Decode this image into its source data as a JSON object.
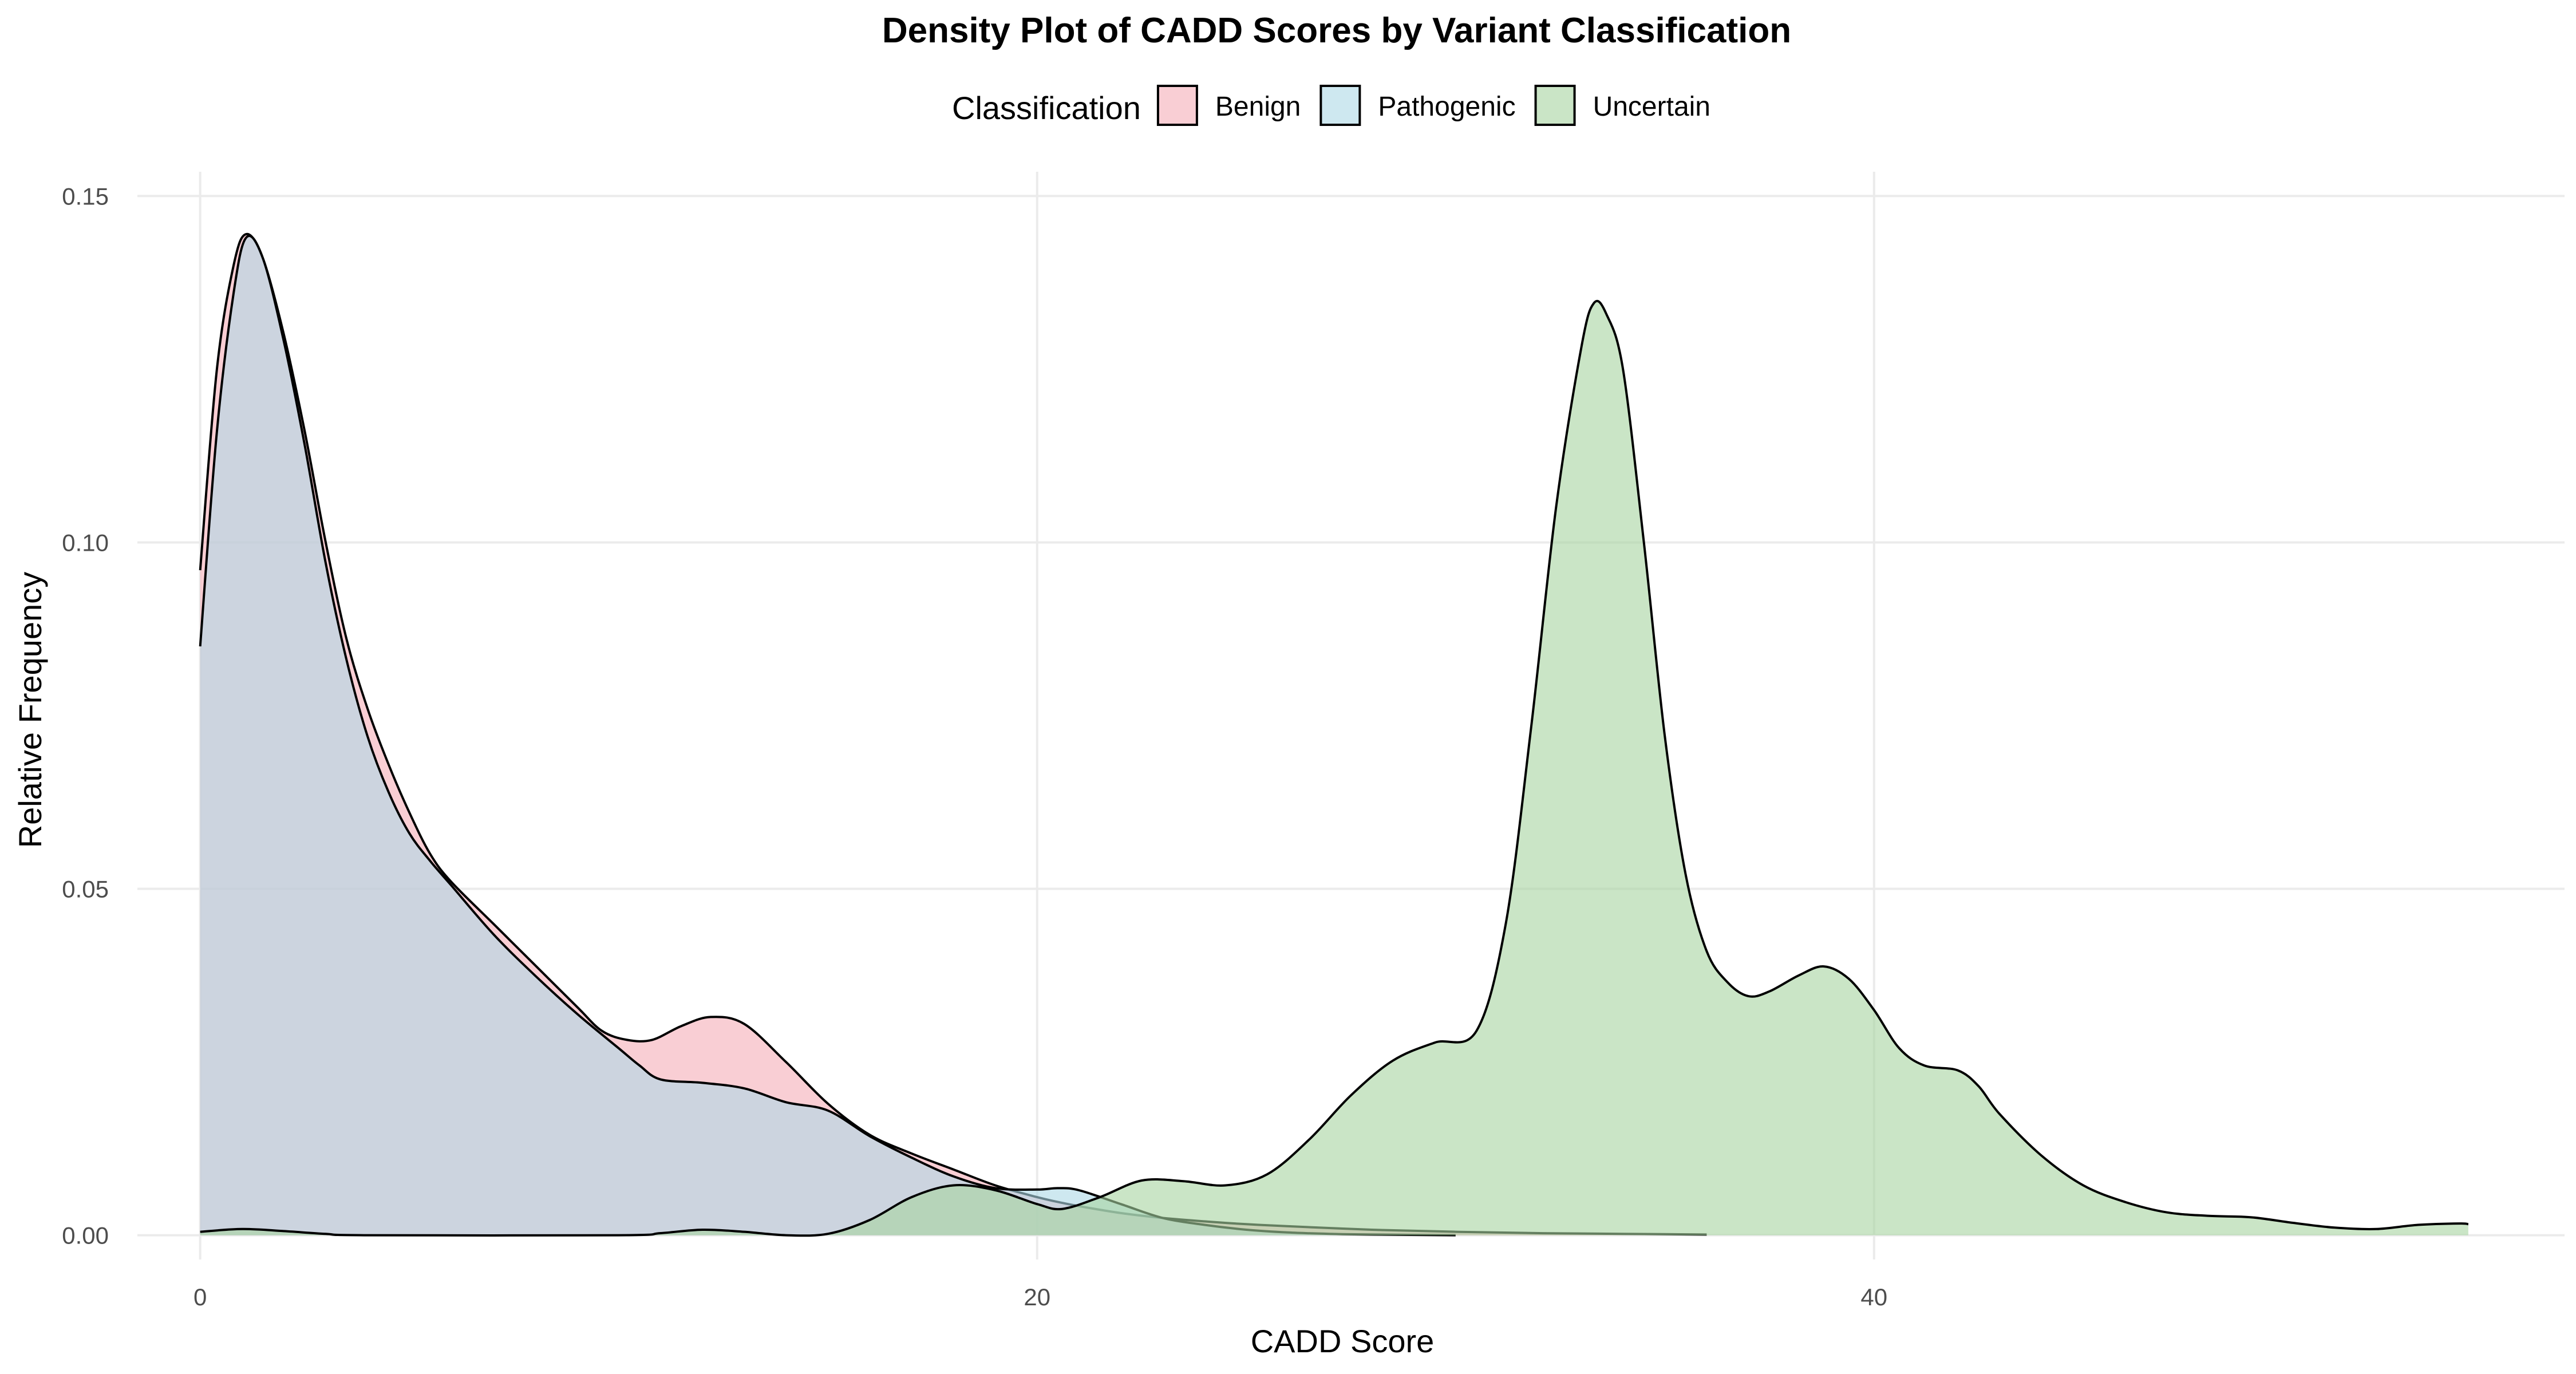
{
  "chart_data": {
    "type": "area",
    "title": "Density Plot of CADD Scores by Variant Classification",
    "xlabel": "CADD Score",
    "ylabel": "Relative Frequency",
    "xlim": [
      -1.5,
      56.5
    ],
    "ylim": [
      -0.0035,
      0.1535
    ],
    "x_ticks": [
      0,
      20,
      40
    ],
    "x_tick_labels": [
      "0",
      "20",
      "40"
    ],
    "y_ticks": [
      0.0,
      0.05,
      0.1,
      0.15
    ],
    "y_tick_labels": [
      "0.00",
      "0.05",
      "0.10",
      "0.15"
    ],
    "grid": true,
    "legend": {
      "title": "Classification",
      "position": "top"
    },
    "series": [
      {
        "name": "Benign",
        "fill": "#f4a5b0",
        "fill_opacity": 0.55,
        "points": [
          [
            0,
            0.096
          ],
          [
            0.4,
            0.125
          ],
          [
            0.8,
            0.14
          ],
          [
            1.1,
            0.1445
          ],
          [
            1.5,
            0.141
          ],
          [
            2,
            0.13
          ],
          [
            2.5,
            0.116
          ],
          [
            3,
            0.1
          ],
          [
            3.5,
            0.086
          ],
          [
            4,
            0.076
          ],
          [
            4.5,
            0.068
          ],
          [
            5,
            0.061
          ],
          [
            5.5,
            0.055
          ],
          [
            6,
            0.051
          ],
          [
            7,
            0.045
          ],
          [
            8,
            0.039
          ],
          [
            9,
            0.033
          ],
          [
            9.6,
            0.0295
          ],
          [
            10.2,
            0.0282
          ],
          [
            10.8,
            0.0282
          ],
          [
            11.5,
            0.0302
          ],
          [
            12.2,
            0.0315
          ],
          [
            13,
            0.0305
          ],
          [
            14,
            0.025
          ],
          [
            15,
            0.019
          ],
          [
            16,
            0.0145
          ],
          [
            17,
            0.0118
          ],
          [
            18,
            0.0095
          ],
          [
            19,
            0.0072
          ],
          [
            20,
            0.0055
          ],
          [
            20.5,
            0.0048
          ],
          [
            21,
            0.0042
          ],
          [
            22,
            0.0032
          ],
          [
            23,
            0.0025
          ],
          [
            24,
            0.002
          ],
          [
            25,
            0.0016
          ],
          [
            26,
            0.0013
          ],
          [
            28,
            0.0008
          ],
          [
            30,
            0.0005
          ],
          [
            32,
            0.0003
          ],
          [
            34,
            0.0002
          ],
          [
            36,
            0.0001
          ]
        ]
      },
      {
        "name": "Pathogenic",
        "fill": "#add8e6",
        "fill_opacity": 0.6,
        "points": [
          [
            0,
            0.085
          ],
          [
            0.4,
            0.116
          ],
          [
            0.8,
            0.136
          ],
          [
            1.1,
            0.144
          ],
          [
            1.5,
            0.141
          ],
          [
            2,
            0.129
          ],
          [
            2.5,
            0.114
          ],
          [
            3,
            0.097
          ],
          [
            3.5,
            0.083
          ],
          [
            4,
            0.072
          ],
          [
            4.5,
            0.064
          ],
          [
            5,
            0.058
          ],
          [
            5.5,
            0.054
          ],
          [
            6,
            0.0505
          ],
          [
            7,
            0.0435
          ],
          [
            8,
            0.0375
          ],
          [
            9,
            0.032
          ],
          [
            10,
            0.027
          ],
          [
            10.5,
            0.0245
          ],
          [
            11,
            0.0225
          ],
          [
            12,
            0.022
          ],
          [
            13,
            0.0212
          ],
          [
            14,
            0.0192
          ],
          [
            15,
            0.018
          ],
          [
            16,
            0.0143
          ],
          [
            17,
            0.0112
          ],
          [
            18,
            0.0085
          ],
          [
            19,
            0.0068
          ],
          [
            20,
            0.0066
          ],
          [
            20.5,
            0.0068
          ],
          [
            21,
            0.0065
          ],
          [
            22,
            0.0045
          ],
          [
            23,
            0.0025
          ],
          [
            24,
            0.0015
          ],
          [
            25,
            0.0008
          ],
          [
            26,
            0.0004
          ],
          [
            27,
            0.0002
          ],
          [
            28,
            0.0001
          ],
          [
            30,
            0.0
          ]
        ]
      },
      {
        "name": "Uncertain",
        "fill": "#a6d4a0",
        "fill_opacity": 0.6,
        "points": [
          [
            0,
            0.0005
          ],
          [
            1,
            0.0009
          ],
          [
            2,
            0.0006
          ],
          [
            3,
            0.0002
          ],
          [
            4,
            0.0
          ],
          [
            10,
            0.0
          ],
          [
            11,
            0.0003
          ],
          [
            12,
            0.0008
          ],
          [
            13,
            0.0005
          ],
          [
            14,
            0.0
          ],
          [
            15,
            0.0002
          ],
          [
            16,
            0.0022
          ],
          [
            17,
            0.0055
          ],
          [
            18,
            0.0072
          ],
          [
            19,
            0.0065
          ],
          [
            20,
            0.0045
          ],
          [
            20.6,
            0.0038
          ],
          [
            21.5,
            0.0055
          ],
          [
            22.5,
            0.0079
          ],
          [
            23.5,
            0.0078
          ],
          [
            24.5,
            0.0072
          ],
          [
            25.5,
            0.0088
          ],
          [
            26.5,
            0.0138
          ],
          [
            27.5,
            0.0202
          ],
          [
            28.5,
            0.0252
          ],
          [
            29.5,
            0.0278
          ],
          [
            30.5,
            0.0295
          ],
          [
            31.2,
            0.045
          ],
          [
            31.8,
            0.073
          ],
          [
            32.4,
            0.105
          ],
          [
            33,
            0.128
          ],
          [
            33.3,
            0.1345
          ],
          [
            33.6,
            0.133
          ],
          [
            34,
            0.125
          ],
          [
            34.5,
            0.1
          ],
          [
            35,
            0.072
          ],
          [
            35.5,
            0.052
          ],
          [
            36,
            0.041
          ],
          [
            36.5,
            0.0365
          ],
          [
            37,
            0.0345
          ],
          [
            37.5,
            0.0352
          ],
          [
            38.2,
            0.0375
          ],
          [
            38.8,
            0.0388
          ],
          [
            39.4,
            0.037
          ],
          [
            40,
            0.0325
          ],
          [
            40.6,
            0.027
          ],
          [
            41.2,
            0.0245
          ],
          [
            42,
            0.0238
          ],
          [
            42.5,
            0.0215
          ],
          [
            43,
            0.0175
          ],
          [
            44,
            0.0115
          ],
          [
            45,
            0.0072
          ],
          [
            46,
            0.0048
          ],
          [
            47,
            0.0033
          ],
          [
            48,
            0.0028
          ],
          [
            49,
            0.0026
          ],
          [
            50,
            0.0018
          ],
          [
            51,
            0.0011
          ],
          [
            52,
            0.0009
          ],
          [
            53,
            0.0015
          ],
          [
            54,
            0.0017
          ],
          [
            54.2,
            0.0016
          ]
        ]
      }
    ]
  }
}
